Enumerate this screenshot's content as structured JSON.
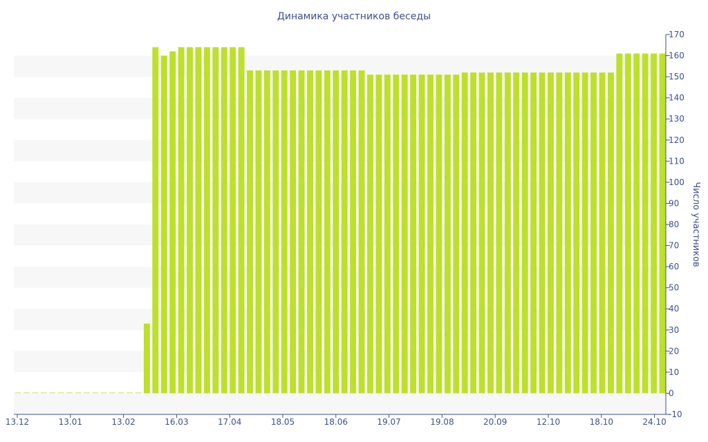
{
  "chart_data": {
    "type": "bar",
    "title": "Динамика участников беседы",
    "xlabel": "",
    "ylabel": "Число участников",
    "y_axis_position": "right",
    "ylim": [
      -10,
      170
    ],
    "yticks": [
      -10,
      0,
      10,
      20,
      30,
      40,
      50,
      60,
      70,
      80,
      90,
      100,
      110,
      120,
      130,
      140,
      150,
      160,
      170
    ],
    "x_tick_labels": [
      "13.12",
      "13.01",
      "13.02",
      "16.03",
      "17.04",
      "18.05",
      "18.06",
      "19.07",
      "19.08",
      "20.09",
      "12.10",
      "18.10",
      "24.10"
    ],
    "grid": "horizontal-bands",
    "colors": {
      "bar": "#bde02b",
      "zero_bar": "#dbe99a",
      "band": "#f7f7f7",
      "text": "#3e4f8c",
      "axis": "#3e4f8c"
    },
    "values": [
      0,
      0,
      0,
      0,
      0,
      0,
      0,
      0,
      0,
      0,
      0,
      0,
      0,
      0,
      0,
      33,
      164,
      160,
      162,
      164,
      164,
      164,
      164,
      164,
      164,
      164,
      164,
      153,
      153,
      153,
      153,
      153,
      153,
      153,
      153,
      153,
      153,
      153,
      153,
      153,
      153,
      151,
      151,
      151,
      151,
      151,
      151,
      151,
      151,
      151,
      151,
      151,
      152,
      152,
      152,
      152,
      152,
      152,
      152,
      152,
      152,
      152,
      152,
      152,
      152,
      152,
      152,
      152,
      152,
      152,
      161,
      161,
      161,
      161,
      161,
      161
    ]
  }
}
